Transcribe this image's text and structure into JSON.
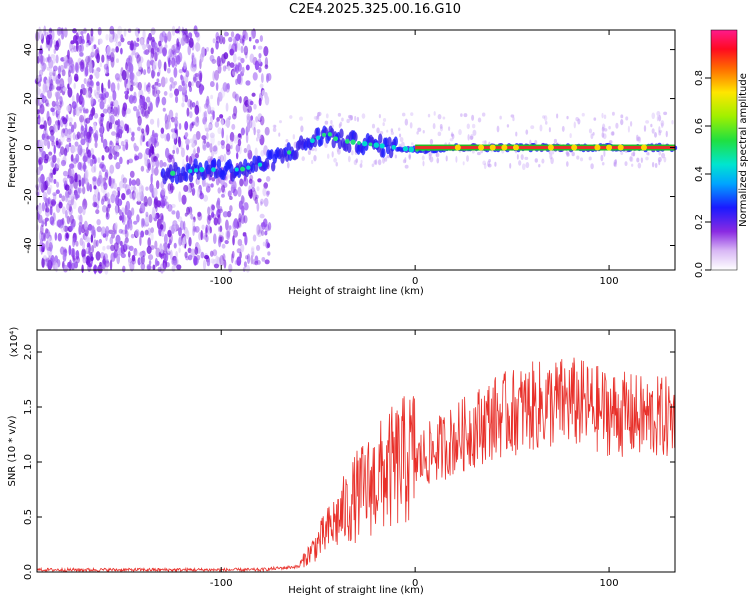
{
  "title": "C2E4.2025.325.00.16.G10",
  "colors": {
    "snr_line": "#e8302a",
    "spectral_line": "#e8302a",
    "background": "#ffffff"
  },
  "chart_data": [
    {
      "id": "spectrogram",
      "type": "heatmap",
      "xlabel": "Height of straight line (km)",
      "ylabel": "Frequency (Hz)",
      "xlim": [
        -195,
        134
      ],
      "ylim": [
        -50,
        48
      ],
      "xticks": [
        -100,
        0,
        100
      ],
      "yticks": [
        -40,
        -20,
        0,
        20,
        40
      ],
      "colorbar": {
        "label": "Normalized spectral amplitude",
        "range": [
          0,
          1
        ],
        "ticks": [
          "0.0",
          "0.2",
          "0.4",
          "0.6",
          "0.8"
        ]
      },
      "ridge": [
        {
          "x": -130,
          "y": -11
        },
        {
          "x": -120,
          "y": -10
        },
        {
          "x": -110,
          "y": -9
        },
        {
          "x": -100,
          "y": -9
        },
        {
          "x": -90,
          "y": -9
        },
        {
          "x": -80,
          "y": -7
        },
        {
          "x": -70,
          "y": -4
        },
        {
          "x": -60,
          "y": 0
        },
        {
          "x": -50,
          "y": 4
        },
        {
          "x": -45,
          "y": 6
        },
        {
          "x": -40,
          "y": 3
        },
        {
          "x": -30,
          "y": 2
        },
        {
          "x": -20,
          "y": 1
        },
        {
          "x": -10,
          "y": 0
        },
        {
          "x": 0,
          "y": -1
        },
        {
          "x": 20,
          "y": 0
        },
        {
          "x": 60,
          "y": 0
        },
        {
          "x": 100,
          "y": 0
        },
        {
          "x": 134,
          "y": 0
        }
      ]
    },
    {
      "id": "snr",
      "type": "line",
      "xlabel": "Height of straight line (km)",
      "ylabel": "SNR (10 * v/v)",
      "multiplier_label": "(x10⁴)",
      "xlim": [
        -195,
        134
      ],
      "ylim": [
        0,
        2.2
      ],
      "xticks": [
        -100,
        0,
        100
      ],
      "yticks": [
        "0.0",
        "0.5",
        "1.0",
        "1.5",
        "2.0"
      ],
      "envelope": [
        {
          "x": -195,
          "y": 0.02
        },
        {
          "x": -100,
          "y": 0.02
        },
        {
          "x": -80,
          "y": 0.02
        },
        {
          "x": -60,
          "y": 0.05
        },
        {
          "x": -45,
          "y": 0.35
        },
        {
          "x": -30,
          "y": 0.65
        },
        {
          "x": -15,
          "y": 0.85
        },
        {
          "x": 0,
          "y": 1.0
        },
        {
          "x": 20,
          "y": 1.2
        },
        {
          "x": 40,
          "y": 1.4
        },
        {
          "x": 60,
          "y": 1.5
        },
        {
          "x": 80,
          "y": 1.55
        },
        {
          "x": 100,
          "y": 1.45
        },
        {
          "x": 120,
          "y": 1.4
        },
        {
          "x": 134,
          "y": 1.4
        }
      ],
      "series": [
        {
          "name": "SNR",
          "color": "#e8302a"
        }
      ]
    }
  ]
}
